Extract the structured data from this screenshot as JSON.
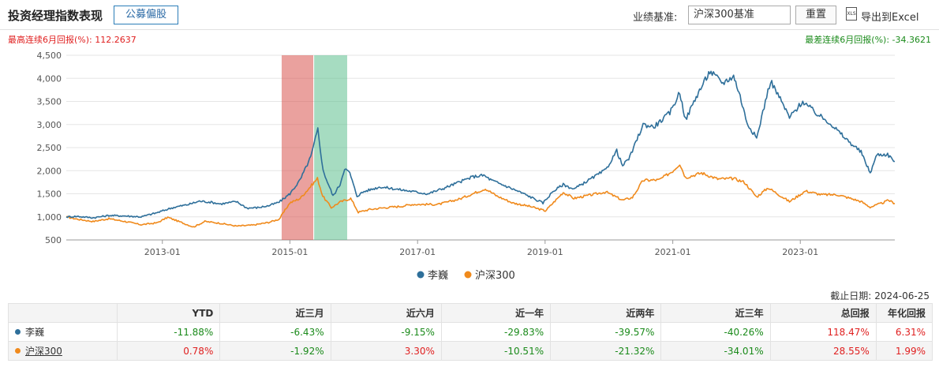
{
  "header": {
    "title": "投资经理指数表现",
    "public_button": "公募偏股",
    "benchmark_label": "业绩基准:",
    "benchmark_value": "沪深300基准",
    "reset_button": "重置",
    "export_icon_text": "XLS",
    "export_label": "导出到Excel"
  },
  "stats": {
    "max_label": "最高连续6月回报(%):",
    "max_value": "112.2637",
    "min_label": "最差连续6月回报(%):",
    "min_value": "-34.3621"
  },
  "chart_data": {
    "type": "line",
    "ylim": [
      500,
      4500
    ],
    "yticks": [
      500,
      1000,
      1500,
      2000,
      2500,
      3000,
      3500,
      4000,
      4500
    ],
    "ytick_labels": [
      "500",
      "1,000",
      "1,500",
      "2,000",
      "2,500",
      "3,000",
      "3,500",
      "4,000",
      "4,500"
    ],
    "xlim": [
      "2011-07-01",
      "2024-06-25"
    ],
    "xticks": [
      "2013-01-01",
      "2015-01-01",
      "2017-01-01",
      "2019-01-01",
      "2021-01-01",
      "2023-01-01"
    ],
    "xtick_labels": [
      "2013-01",
      "2015-01",
      "2017-01",
      "2019-01",
      "2021-01",
      "2023-01"
    ],
    "grid": "horizontal",
    "legend_placement": "bottom-center",
    "bands": [
      {
        "start": "2014-11-15",
        "end": "2015-05-15",
        "color": "#d9534f"
      },
      {
        "start": "2015-05-20",
        "end": "2015-11-25",
        "color": "#5cbf8e"
      }
    ],
    "series": [
      {
        "name": "李巍",
        "color": "#2e6f9a",
        "points": [
          [
            "2011-07-01",
            1000
          ],
          [
            "2011-09-01",
            1010
          ],
          [
            "2011-12-01",
            980
          ],
          [
            "2012-03-01",
            1030
          ],
          [
            "2012-06-01",
            1020
          ],
          [
            "2012-09-01",
            1000
          ],
          [
            "2012-12-01",
            1090
          ],
          [
            "2013-03-01",
            1200
          ],
          [
            "2013-06-01",
            1270
          ],
          [
            "2013-08-01",
            1340
          ],
          [
            "2013-10-01",
            1320
          ],
          [
            "2013-12-01",
            1280
          ],
          [
            "2014-03-01",
            1330
          ],
          [
            "2014-05-01",
            1190
          ],
          [
            "2014-07-01",
            1200
          ],
          [
            "2014-09-01",
            1240
          ],
          [
            "2014-11-01",
            1320
          ],
          [
            "2015-01-01",
            1500
          ],
          [
            "2015-03-01",
            1800
          ],
          [
            "2015-05-01",
            2300
          ],
          [
            "2015-06-10",
            2900
          ],
          [
            "2015-07-10",
            2000
          ],
          [
            "2015-08-10",
            1700
          ],
          [
            "2015-09-05",
            1450
          ],
          [
            "2015-10-15",
            1700
          ],
          [
            "2015-11-10",
            2050
          ],
          [
            "2015-12-10",
            1950
          ],
          [
            "2016-01-20",
            1450
          ],
          [
            "2016-03-01",
            1550
          ],
          [
            "2016-06-01",
            1650
          ],
          [
            "2016-09-01",
            1600
          ],
          [
            "2016-12-01",
            1550
          ],
          [
            "2017-03-01",
            1500
          ],
          [
            "2017-06-01",
            1620
          ],
          [
            "2017-09-01",
            1760
          ],
          [
            "2017-11-15",
            1870
          ],
          [
            "2018-01-15",
            1900
          ],
          [
            "2018-03-01",
            1790
          ],
          [
            "2018-06-01",
            1650
          ],
          [
            "2018-09-01",
            1500
          ],
          [
            "2018-12-20",
            1300
          ],
          [
            "2019-02-15",
            1550
          ],
          [
            "2019-04-15",
            1700
          ],
          [
            "2019-06-15",
            1600
          ],
          [
            "2019-09-01",
            1780
          ],
          [
            "2019-12-15",
            2020
          ],
          [
            "2020-02-15",
            2430
          ],
          [
            "2020-03-20",
            2100
          ],
          [
            "2020-05-01",
            2300
          ],
          [
            "2020-07-15",
            3000
          ],
          [
            "2020-09-15",
            2950
          ],
          [
            "2020-12-15",
            3250
          ],
          [
            "2021-02-10",
            3700
          ],
          [
            "2021-03-15",
            3100
          ],
          [
            "2021-05-15",
            3600
          ],
          [
            "2021-08-01",
            4150
          ],
          [
            "2021-10-15",
            3900
          ],
          [
            "2021-12-15",
            4050
          ],
          [
            "2022-01-15",
            3700
          ],
          [
            "2022-03-01",
            3050
          ],
          [
            "2022-04-26",
            2700
          ],
          [
            "2022-06-15",
            3500
          ],
          [
            "2022-07-15",
            3950
          ],
          [
            "2022-09-15",
            3500
          ],
          [
            "2022-10-31",
            3150
          ],
          [
            "2023-01-15",
            3500
          ],
          [
            "2023-04-15",
            3200
          ],
          [
            "2023-06-15",
            3050
          ],
          [
            "2023-09-15",
            2700
          ],
          [
            "2023-12-15",
            2400
          ],
          [
            "2024-02-05",
            1950
          ],
          [
            "2024-03-15",
            2350
          ],
          [
            "2024-05-15",
            2350
          ],
          [
            "2024-06-25",
            2200
          ]
        ]
      },
      {
        "name": "沪深300",
        "color": "#f08a1c",
        "points": [
          [
            "2011-07-01",
            1000
          ],
          [
            "2011-09-01",
            950
          ],
          [
            "2011-12-01",
            900
          ],
          [
            "2012-03-01",
            960
          ],
          [
            "2012-06-01",
            900
          ],
          [
            "2012-09-01",
            830
          ],
          [
            "2012-12-01",
            870
          ],
          [
            "2013-02-01",
            990
          ],
          [
            "2013-06-28",
            780
          ],
          [
            "2013-09-01",
            900
          ],
          [
            "2013-12-01",
            860
          ],
          [
            "2014-03-01",
            800
          ],
          [
            "2014-06-01",
            820
          ],
          [
            "2014-09-01",
            880
          ],
          [
            "2014-11-01",
            950
          ],
          [
            "2014-12-31",
            1300
          ],
          [
            "2015-03-01",
            1400
          ],
          [
            "2015-06-08",
            1830
          ],
          [
            "2015-07-08",
            1450
          ],
          [
            "2015-08-26",
            1200
          ],
          [
            "2015-10-15",
            1320
          ],
          [
            "2015-12-15",
            1400
          ],
          [
            "2016-01-28",
            1100
          ],
          [
            "2016-04-01",
            1160
          ],
          [
            "2016-07-01",
            1200
          ],
          [
            "2016-10-01",
            1230
          ],
          [
            "2016-12-01",
            1270
          ],
          [
            "2017-05-01",
            1270
          ],
          [
            "2017-09-01",
            1390
          ],
          [
            "2018-01-24",
            1610
          ],
          [
            "2018-04-01",
            1450
          ],
          [
            "2018-07-01",
            1300
          ],
          [
            "2018-10-01",
            1230
          ],
          [
            "2019-01-03",
            1130
          ],
          [
            "2019-04-15",
            1530
          ],
          [
            "2019-06-15",
            1400
          ],
          [
            "2019-09-01",
            1460
          ],
          [
            "2019-12-15",
            1540
          ],
          [
            "2020-03-20",
            1360
          ],
          [
            "2020-05-15",
            1420
          ],
          [
            "2020-07-15",
            1790
          ],
          [
            "2020-10-15",
            1800
          ],
          [
            "2020-12-31",
            1990
          ],
          [
            "2021-02-10",
            2150
          ],
          [
            "2021-03-15",
            1850
          ],
          [
            "2021-06-15",
            1950
          ],
          [
            "2021-09-15",
            1820
          ],
          [
            "2021-12-15",
            1830
          ],
          [
            "2022-02-15",
            1750
          ],
          [
            "2022-04-26",
            1430
          ],
          [
            "2022-07-01",
            1630
          ],
          [
            "2022-10-31",
            1330
          ],
          [
            "2023-01-31",
            1560
          ],
          [
            "2023-05-01",
            1480
          ],
          [
            "2023-08-01",
            1480
          ],
          [
            "2023-10-15",
            1400
          ],
          [
            "2023-12-15",
            1330
          ],
          [
            "2024-02-05",
            1210
          ],
          [
            "2024-04-15",
            1300
          ],
          [
            "2024-05-20",
            1360
          ],
          [
            "2024-06-25",
            1290
          ]
        ]
      }
    ]
  },
  "as_of": {
    "label": "截止日期:",
    "value": "2024-06-25"
  },
  "table": {
    "headers": [
      "",
      "YTD",
      "近三月",
      "近六月",
      "近一年",
      "近两年",
      "近三年",
      "总回报",
      "年化回报"
    ],
    "rows": [
      {
        "name": "李巍",
        "dot_color": "#2e6f9a",
        "values": [
          "-11.88%",
          "-6.43%",
          "-9.15%",
          "-29.83%",
          "-39.57%",
          "-40.26%",
          "118.47%",
          "6.31%"
        ]
      },
      {
        "name": "沪深300",
        "dot_color": "#f08a1c",
        "values": [
          "0.78%",
          "-1.92%",
          "3.30%",
          "-10.51%",
          "-21.32%",
          "-34.01%",
          "28.55%",
          "1.99%"
        ]
      }
    ]
  }
}
